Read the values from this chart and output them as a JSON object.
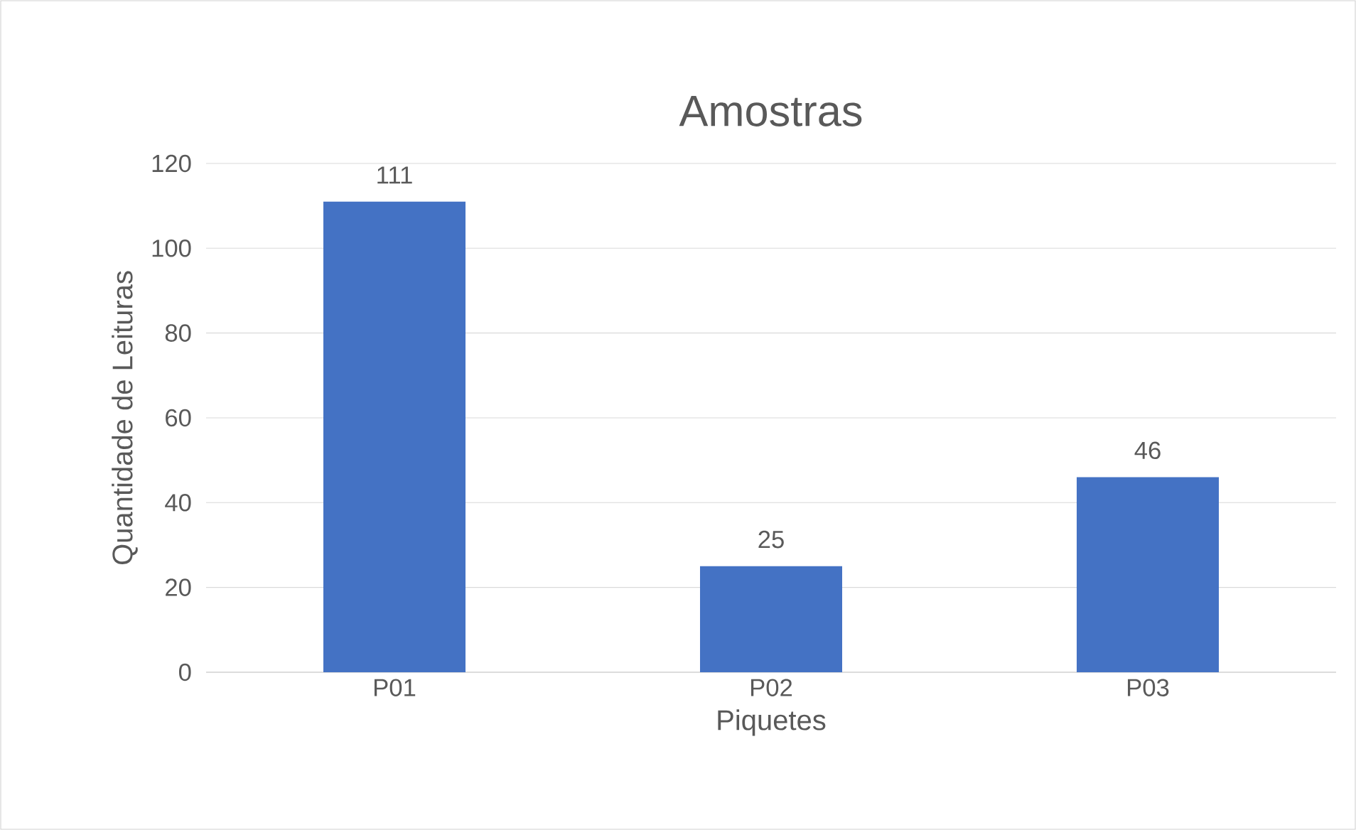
{
  "chart_data": {
    "type": "bar",
    "title": "Amostras",
    "xlabel": "Piquetes",
    "ylabel": "Quantidade de Leituras",
    "categories": [
      "P01",
      "P02",
      "P03"
    ],
    "values": [
      111,
      25,
      46
    ],
    "color": "#4472c4",
    "ylim": [
      0,
      120
    ],
    "yticks": [
      0,
      20,
      40,
      60,
      80,
      100,
      120
    ],
    "grid": "y",
    "data_labels": true
  }
}
